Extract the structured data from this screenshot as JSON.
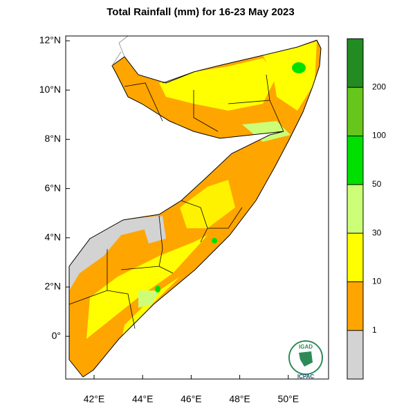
{
  "title": "Total Rainfall (mm) for 16-23 May 2023",
  "y_axis": {
    "ticks": [
      "12°N",
      "10°N",
      "8°N",
      "6°N",
      "4°N",
      "2°N",
      "0°"
    ]
  },
  "x_axis": {
    "ticks": [
      "42°E",
      "44°E",
      "46°E",
      "48°E",
      "50°E"
    ]
  },
  "legend": {
    "colors": [
      "#d3d3d3",
      "#ffa500",
      "#ffff00",
      "#ccff77",
      "#00e000",
      "#66c61c",
      "#228b22"
    ],
    "labels": [
      "1",
      "10",
      "30",
      "50",
      "100",
      "200"
    ]
  },
  "logo": {
    "top": "IGAD",
    "bottom": "ICPAC"
  }
}
